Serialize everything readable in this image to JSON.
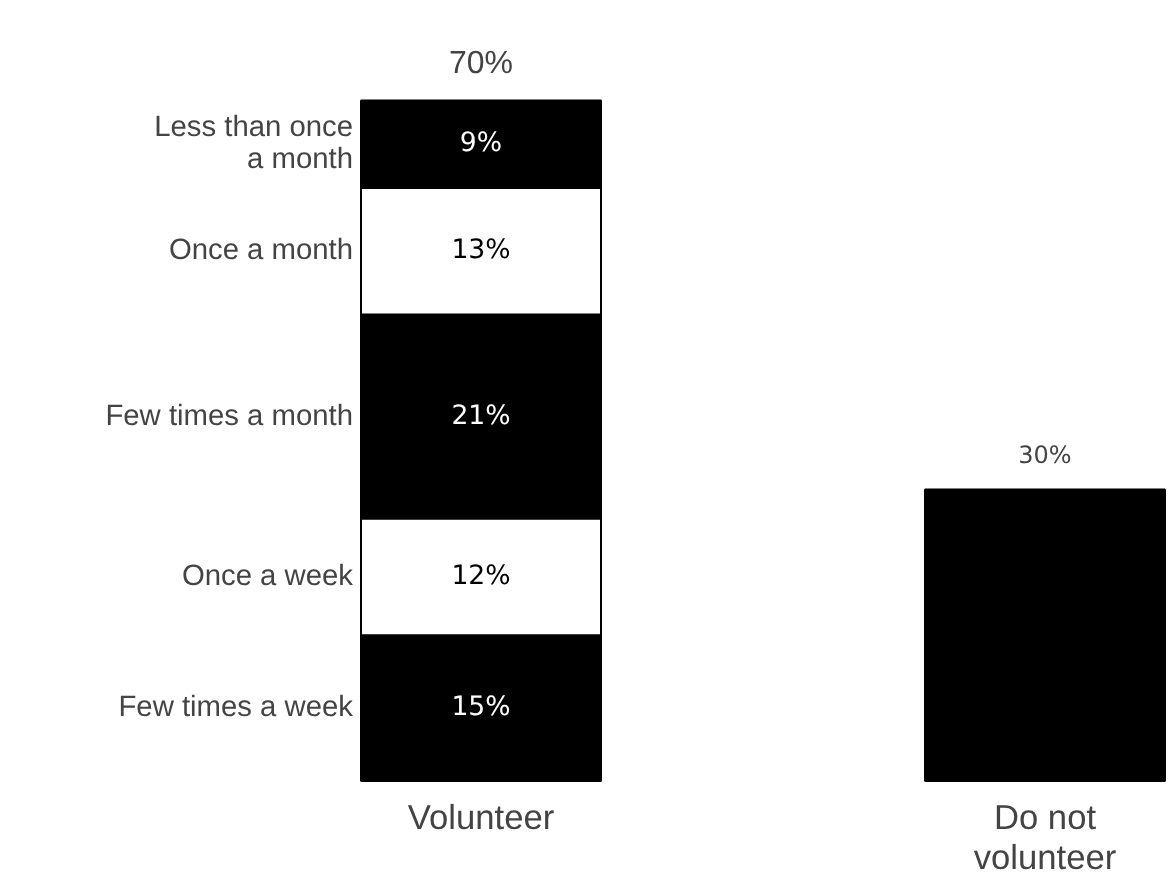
{
  "chart_data": {
    "type": "bar",
    "stacked": true,
    "categories": [
      "Volunteer",
      "Do not volunteer"
    ],
    "series": [
      {
        "name": "Few times a week",
        "color": "#000000",
        "values": [
          15,
          null
        ],
        "value_labels": [
          "15%",
          null
        ]
      },
      {
        "name": "Once a week",
        "color": "#ffffff",
        "values": [
          12,
          null
        ],
        "value_labels": [
          "12%",
          null
        ]
      },
      {
        "name": "Few times a month",
        "color": "#000000",
        "values": [
          21,
          null
        ],
        "value_labels": [
          "21%",
          null
        ]
      },
      {
        "name": "Once a month",
        "color": "#ffffff",
        "values": [
          13,
          null
        ],
        "value_labels": [
          "13%",
          null
        ]
      },
      {
        "name": "Less than once a month",
        "color": "#000000",
        "values": [
          9,
          null
        ],
        "value_labels": [
          "9%",
          null
        ]
      },
      {
        "color": "#000000",
        "values": [
          null,
          30
        ]
      }
    ],
    "totals": [
      "70%",
      "30%"
    ]
  }
}
